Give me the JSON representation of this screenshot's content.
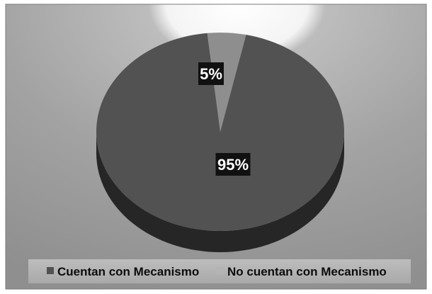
{
  "chart_data": {
    "type": "pie",
    "title": "",
    "categories": [
      "Cuentan con Mecanismo",
      "No cuentan con Mecanismo"
    ],
    "values": [
      95,
      5
    ],
    "data_labels": [
      "95%",
      "5%"
    ],
    "legend_position": "bottom",
    "legend": [
      "Cuentan con Mecanismo",
      "No cuentan con Mecanismo"
    ]
  },
  "colors": {
    "slice_main": "#525252",
    "slice_main_side": "#262626",
    "slice_minor": "#8e8e8e",
    "slice_minor_side": "#6a6a6a",
    "background": "#9c9c9c"
  }
}
